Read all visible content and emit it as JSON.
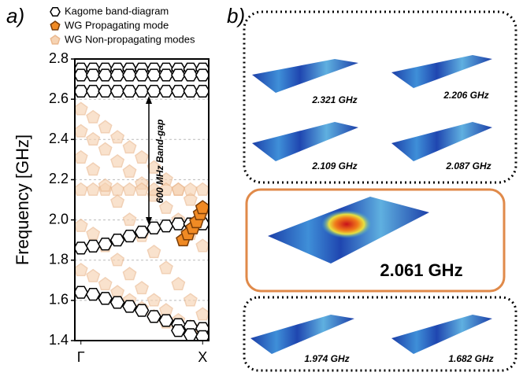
{
  "panel_labels": [
    "a)",
    "b)"
  ],
  "chart_data": {
    "type": "scatter",
    "ylabel": "Frequency [GHz]",
    "annotation": "600 MHz Band-gap",
    "xlim": [
      -0.05,
      1.05
    ],
    "xticks": [
      {
        "value": 0,
        "label": "Γ"
      },
      {
        "value": 1,
        "label": "X"
      }
    ],
    "ylim": [
      1.4,
      2.8
    ],
    "yticks": [
      1.4,
      1.6,
      1.8,
      {
        "value": 2,
        "label": "2.0"
      },
      2.2,
      2.4,
      2.6,
      2.8
    ],
    "grid": true,
    "series": [
      {
        "name": "Kagome band-diagram",
        "marker": "hexagon",
        "color": "#ffffff",
        "edge_color": "#000000",
        "x": [
          0,
          0.1,
          0.2,
          0.3,
          0.4,
          0.5,
          0.6,
          0.7,
          0.8,
          0.9,
          1,
          0,
          0.1,
          0.2,
          0.3,
          0.4,
          0.5,
          0.6,
          0.7,
          0.8,
          0.9,
          1,
          0,
          0.1,
          0.2,
          0.3,
          0.4,
          0.5,
          0.6,
          0.7,
          0.8,
          0.9,
          1,
          0,
          0.1,
          0.2,
          0.3,
          0.4,
          0.5,
          0.6,
          0.7,
          0.8,
          0.9,
          1,
          0,
          0.1,
          0.2,
          0.3,
          0.4,
          0.5,
          0.6,
          0.7,
          0.8,
          0.9,
          1,
          0.8,
          0.9,
          1
        ],
        "y": [
          2.75,
          2.75,
          2.75,
          2.75,
          2.75,
          2.75,
          2.75,
          2.75,
          2.75,
          2.75,
          2.75,
          2.72,
          2.72,
          2.72,
          2.72,
          2.72,
          2.72,
          2.72,
          2.72,
          2.72,
          2.72,
          2.72,
          2.64,
          2.64,
          2.64,
          2.64,
          2.64,
          2.64,
          2.64,
          2.64,
          2.64,
          2.64,
          2.64,
          1.86,
          1.87,
          1.88,
          1.9,
          1.92,
          1.94,
          1.96,
          1.97,
          1.98,
          1.98,
          1.98,
          1.64,
          1.63,
          1.61,
          1.59,
          1.57,
          1.55,
          1.52,
          1.5,
          1.48,
          1.47,
          1.46,
          1.45,
          1.43,
          1.42
        ]
      },
      {
        "name": "WG Propagating mode",
        "marker": "pentagon",
        "color": "#f08a24",
        "edge_color": "#7a3d08",
        "x": [
          0.84,
          0.88,
          0.92,
          0.95,
          0.98,
          1
        ],
        "y": [
          1.9,
          1.93,
          1.96,
          1.99,
          2.03,
          2.06
        ]
      },
      {
        "name": "WG Non-propagating modes",
        "marker": "pentagon",
        "color": "#f6d3b3",
        "edge_color": "#eab88e",
        "x": [
          0,
          0.1,
          0.2,
          0.3,
          0.4,
          0.5,
          0.6,
          0.7,
          0.8,
          0.9,
          1,
          0,
          0.1,
          0.2,
          0.3,
          0.4,
          0.5,
          0.6,
          0.7,
          0.8,
          0.9,
          1,
          0,
          0.1,
          0.2,
          0.3,
          0.4,
          0.5,
          0.6,
          0.7,
          0.8,
          0.9,
          1,
          0,
          0.1,
          0.2,
          0.3,
          0.4,
          0.5,
          0.6,
          0.7,
          0.8,
          0.9,
          1,
          0,
          0.1,
          0.2,
          0.3,
          0.4,
          0.5,
          0.6,
          0.7,
          0.8,
          0.9,
          1,
          0,
          0.1,
          0.2,
          0.3,
          0.4,
          0.5,
          0.6,
          0.7,
          0.8,
          0.9,
          1
        ],
        "y": [
          2.55,
          2.51,
          2.46,
          2.41,
          2.36,
          2.31,
          2.26,
          2.2,
          2.15,
          2.1,
          2.05,
          2.44,
          2.4,
          2.35,
          2.29,
          2.24,
          2.18,
          2.12,
          2.06,
          2,
          1.93,
          1.87,
          2.15,
          2.15,
          2.15,
          2.15,
          2.15,
          2.15,
          2.15,
          2.15,
          2.15,
          2.15,
          2.15,
          2.31,
          2.25,
          2.17,
          2.09,
          2,
          1.92,
          1.84,
          1.76,
          1.68,
          1.6,
          1.53,
          1.97,
          1.93,
          1.87,
          1.8,
          1.73,
          1.66,
          1.6,
          1.55,
          1.5,
          1.47,
          1.45,
          1.75,
          1.72,
          1.68,
          1.64,
          1.6,
          1.56,
          1.52,
          1.49,
          1.46,
          1.44,
          1.43
        ]
      }
    ]
  },
  "panel_b": {
    "modes": [
      "2.321 GHz",
      "2.206 GHz",
      "2.109 GHz",
      "2.087 GHz",
      "2.061 GHz",
      "1.974 GHz",
      "1.682 GHz"
    ]
  }
}
